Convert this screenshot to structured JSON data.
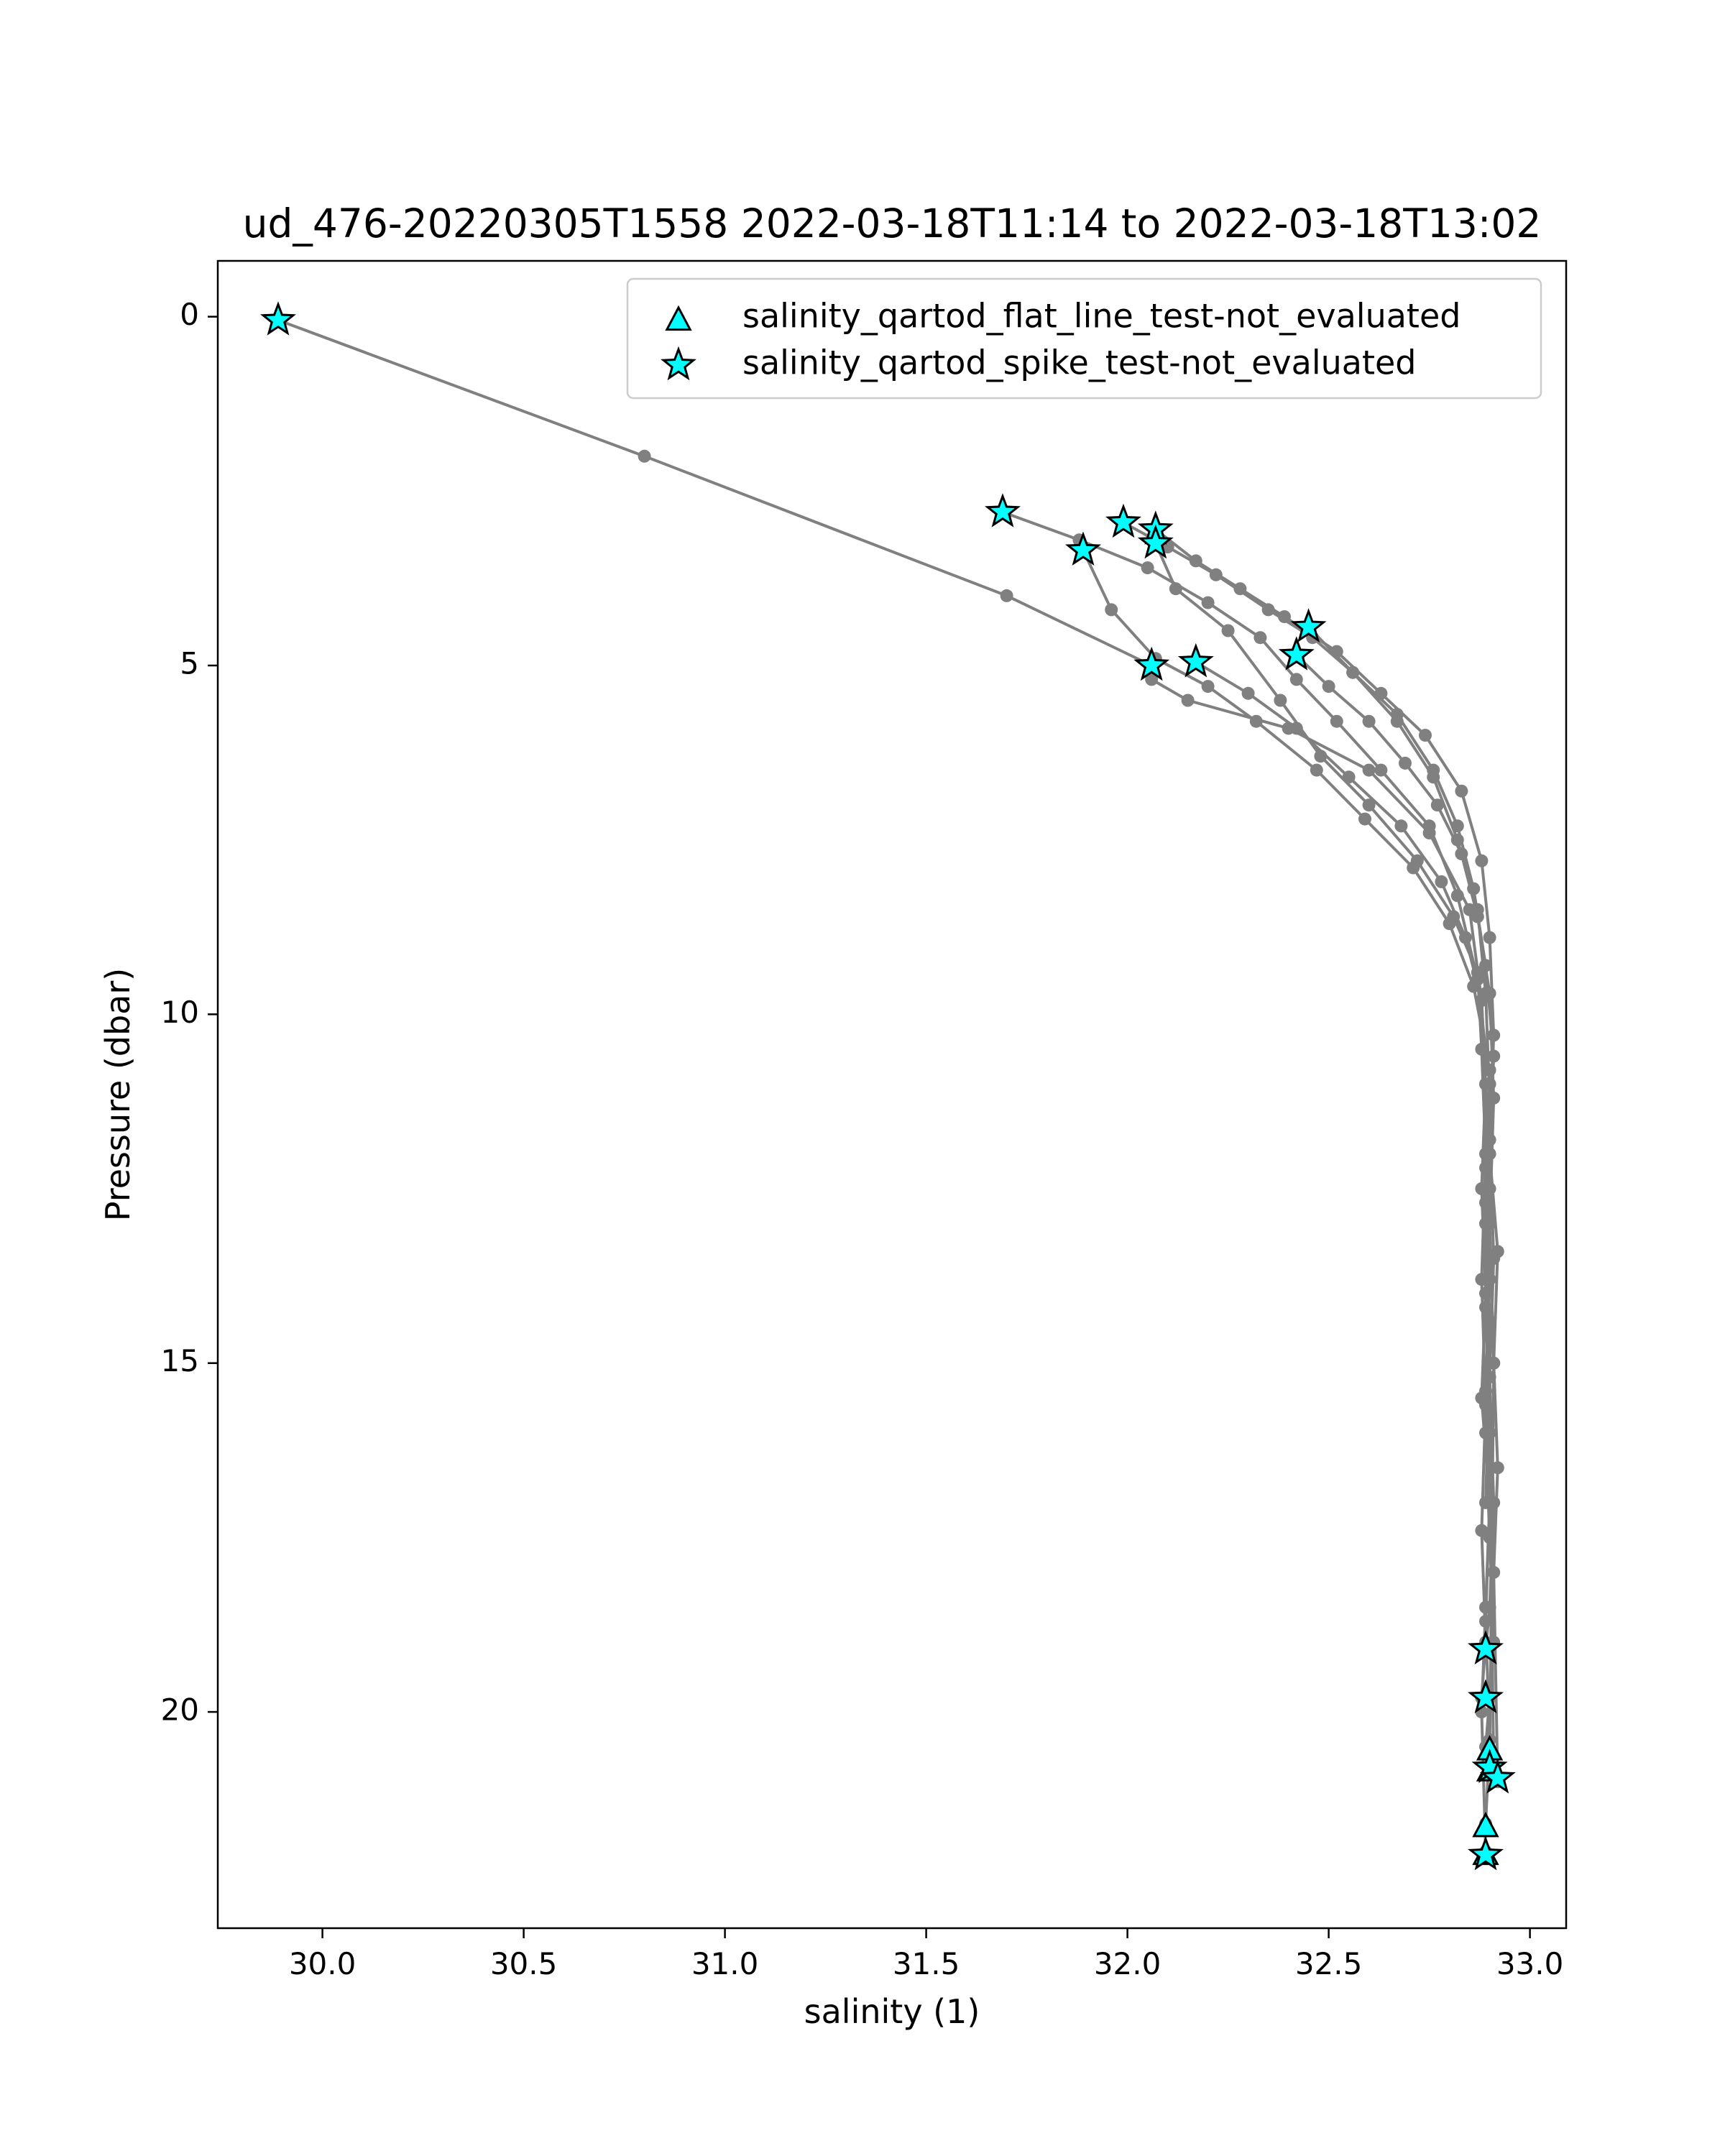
{
  "chart_data": {
    "type": "scatter",
    "title": "ud_476-20220305T1558 2022-03-18T11:14 to 2022-03-18T13:02",
    "xlabel": "salinity (1)",
    "ylabel": "Pressure (dbar)",
    "xlim": [
      29.74,
      33.09
    ],
    "ylim": [
      23.1,
      -0.8
    ],
    "y_inverted": true,
    "x_ticks": [
      30.0,
      30.5,
      31.0,
      31.5,
      32.0,
      32.5,
      33.0
    ],
    "x_tick_labels": [
      "30.0",
      "30.5",
      "31.0",
      "31.5",
      "32.0",
      "32.5",
      "33.0"
    ],
    "y_ticks": [
      0,
      5,
      10,
      15,
      20
    ],
    "y_tick_labels": [
      "0",
      "5",
      "10",
      "15",
      "20"
    ],
    "grid": false,
    "legend_position": "top-right",
    "colors": {
      "line": "#808080",
      "marker_fill": "#00ffff",
      "marker_edge": "#000000"
    },
    "profiles": [
      {
        "salinity": [
          29.89,
          30.8,
          31.7,
          32.06,
          32.06,
          32.15,
          32.4,
          32.6,
          32.75,
          32.85,
          32.88,
          32.89,
          32.88,
          32.89,
          32.88,
          32.9,
          32.89,
          32.88,
          32.89
        ],
        "pressure": [
          0.05,
          2.0,
          4.0,
          5.0,
          5.2,
          5.5,
          5.9,
          6.5,
          7.4,
          8.5,
          9.8,
          11.0,
          12.5,
          14.0,
          15.5,
          17.0,
          18.5,
          20.0,
          22.0
        ]
      },
      {
        "salinity": [
          31.69,
          31.88,
          32.05,
          32.2,
          32.33,
          32.42,
          32.52,
          32.63,
          32.75,
          32.82,
          32.87,
          32.9,
          32.89,
          32.9,
          32.89,
          32.9,
          32.91,
          32.9,
          32.89
        ],
        "pressure": [
          2.8,
          3.2,
          3.6,
          4.1,
          4.6,
          5.2,
          5.8,
          6.5,
          7.3,
          8.3,
          9.5,
          11.0,
          12.7,
          14.4,
          16.0,
          17.5,
          19.0,
          19.8,
          20.5
        ]
      },
      {
        "salinity": [
          31.99,
          32.1,
          32.22,
          32.35,
          32.46,
          32.56,
          32.67,
          32.76,
          32.82,
          32.86,
          32.89,
          32.91,
          32.9,
          32.92,
          32.91,
          32.92,
          32.91,
          32.92
        ],
        "pressure": [
          2.95,
          3.3,
          3.7,
          4.2,
          4.6,
          5.1,
          5.7,
          6.5,
          7.3,
          8.2,
          9.3,
          10.6,
          12.0,
          13.4,
          15.0,
          16.5,
          18.0,
          21.0
        ]
      },
      {
        "salinity": [
          32.07,
          32.17,
          32.28,
          32.39,
          32.52,
          32.63,
          32.74,
          32.83,
          32.88,
          32.9,
          32.91,
          32.9,
          32.91,
          32.9,
          32.91,
          32.9,
          32.89
        ],
        "pressure": [
          3.05,
          3.5,
          3.9,
          4.3,
          4.8,
          5.4,
          6.0,
          6.8,
          7.8,
          8.9,
          10.3,
          11.8,
          13.5,
          15.2,
          17.0,
          18.5,
          19.1
        ]
      },
      {
        "salinity": [
          31.89,
          31.96,
          32.07,
          32.2,
          32.32,
          32.47,
          32.59,
          32.71,
          32.8,
          32.86,
          32.9,
          32.89,
          32.9,
          32.89,
          32.9,
          32.89,
          32.9,
          32.89
        ],
        "pressure": [
          3.35,
          4.2,
          4.9,
          5.3,
          5.8,
          6.5,
          7.2,
          7.9,
          8.7,
          9.6,
          10.8,
          12.2,
          13.8,
          15.4,
          17.0,
          18.7,
          20.4,
          21.6
        ]
      },
      {
        "salinity": [
          32.07,
          32.12,
          32.25,
          32.38,
          32.48,
          32.6,
          32.72,
          32.81,
          32.87,
          32.88,
          32.89,
          32.88,
          32.89,
          32.88,
          32.89,
          32.88
        ],
        "pressure": [
          3.25,
          3.9,
          4.5,
          5.5,
          6.3,
          7.0,
          7.8,
          8.6,
          9.4,
          10.5,
          12.0,
          13.8,
          15.6,
          17.4,
          19.0,
          19.8
        ]
      },
      {
        "salinity": [
          32.17,
          32.3,
          32.42,
          32.55,
          32.68,
          32.78,
          32.84,
          32.88,
          32.89,
          32.9,
          32.89,
          32.9,
          32.91
        ],
        "pressure": [
          4.95,
          5.4,
          5.9,
          6.6,
          7.3,
          8.1,
          8.9,
          9.8,
          11.0,
          12.5,
          14.2,
          16.0,
          20.9
        ]
      },
      {
        "salinity": [
          32.42,
          32.5,
          32.6,
          32.69,
          32.77,
          32.83,
          32.87,
          32.9,
          32.91,
          32.9,
          32.91,
          32.9
        ],
        "pressure": [
          4.85,
          5.3,
          5.8,
          6.4,
          7.0,
          7.7,
          8.6,
          9.7,
          11.2,
          13.0,
          15.0,
          20.6
        ]
      },
      {
        "salinity": [
          32.45,
          32.56,
          32.67,
          32.76,
          32.82,
          32.87,
          32.89,
          32.9,
          32.89,
          32.9,
          32.89
        ],
        "pressure": [
          4.45,
          5.1,
          5.8,
          6.6,
          7.5,
          8.5,
          9.7,
          11.2,
          13.0,
          15.0,
          17.0
        ]
      }
    ],
    "series": [
      {
        "name": "salinity_qartod_flat_line_test-not_evaluated",
        "marker": "triangle",
        "points": [
          [
            32.89,
            21.65
          ],
          [
            32.9,
            20.55
          ],
          [
            32.9,
            20.85
          ],
          [
            32.89,
            22.05
          ]
        ]
      },
      {
        "name": "salinity_qartod_spike_test-not_evaluated",
        "marker": "star",
        "points": [
          [
            29.89,
            0.05
          ],
          [
            31.69,
            2.8
          ],
          [
            31.99,
            2.95
          ],
          [
            32.07,
            3.05
          ],
          [
            32.07,
            3.25
          ],
          [
            31.89,
            3.35
          ],
          [
            32.45,
            4.45
          ],
          [
            32.42,
            4.85
          ],
          [
            32.17,
            4.95
          ],
          [
            32.06,
            5.0
          ],
          [
            32.89,
            19.1
          ],
          [
            32.89,
            19.8
          ],
          [
            32.9,
            20.8
          ],
          [
            32.92,
            20.95
          ],
          [
            32.89,
            22.05
          ]
        ]
      }
    ]
  }
}
